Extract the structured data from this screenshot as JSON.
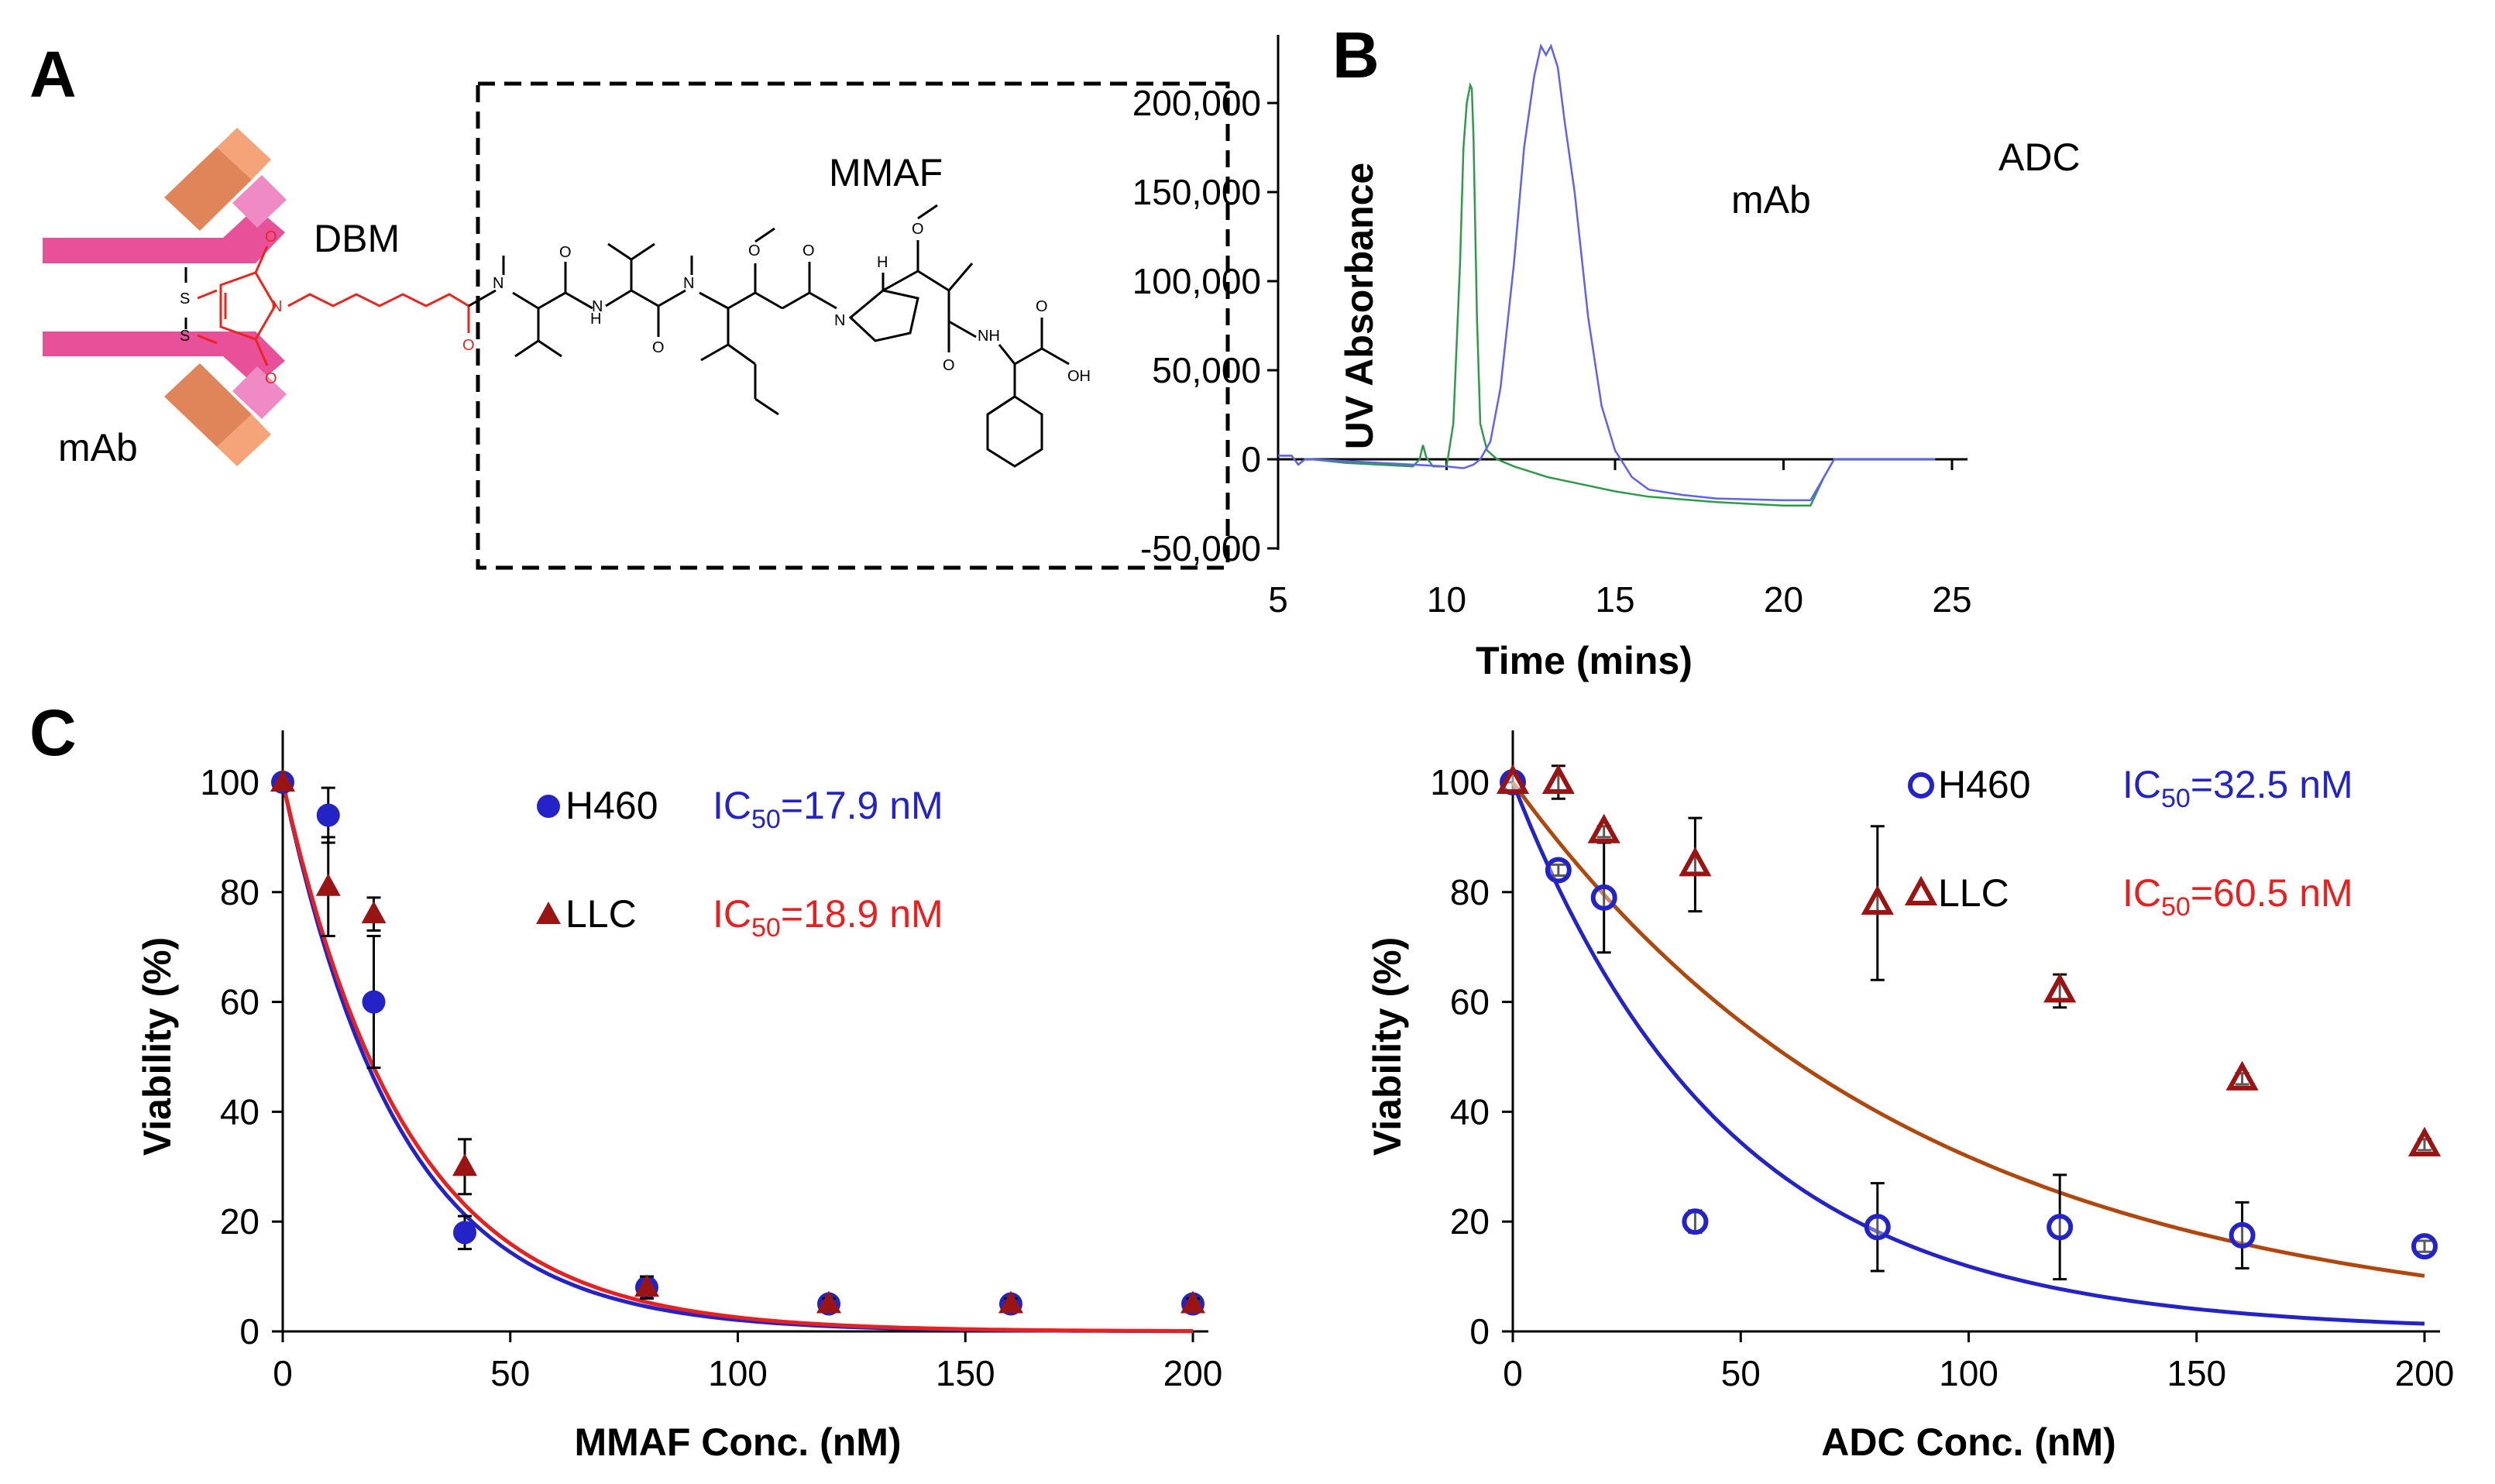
{
  "panels": {
    "a": {
      "letter": "A",
      "mmaf_label": "MMAF",
      "dbm_label": "DBM",
      "mab_label": "mAb",
      "atoms": {
        "N": "N",
        "H": "H",
        "O": "O",
        "S": "S",
        "NH": "NH",
        "OH": "OH"
      }
    },
    "b": {
      "letter": "B"
    },
    "c": {
      "letter": "C"
    }
  },
  "colors": {
    "mab_pink": "#e8509a",
    "mab_light_pink": "#f08ac4",
    "fab_orange": "#f5a47a",
    "fab_dark_orange": "#e0845a",
    "dbm_red": "#e8261d",
    "green": "#2f9a4a",
    "blue_trace": "#5f62ee",
    "blue": "#2323c8",
    "dark_red": "#9a1414",
    "red_curve": "#e82020",
    "brown_curve": "#b0480e",
    "gray_err": "#555555"
  },
  "chart_data": [
    {
      "id": "B",
      "type": "line",
      "title": "",
      "xlabel": "Time (mins)",
      "ylabel": "UV Absorbance",
      "xlim": [
        5,
        25
      ],
      "ylim": [
        -50000,
        240000
      ],
      "xticks": [
        5,
        10,
        15,
        20,
        25
      ],
      "yticks": [
        -50000,
        0,
        50000,
        100000,
        150000,
        200000
      ],
      "ytick_labels": [
        "-50,000",
        "0",
        "50,000",
        "100,000",
        "150,000",
        "200,000"
      ],
      "annotations": [
        "mAb",
        "ADC"
      ],
      "series": [
        {
          "name": "mAb",
          "color": "green",
          "x": [
            5.0,
            5.4,
            5.6,
            5.8,
            6.0,
            7.0,
            8.0,
            9.0,
            9.2,
            9.3,
            9.4,
            9.6,
            10.0,
            10.2,
            10.4,
            10.5,
            10.6,
            10.7,
            10.75,
            10.8,
            10.9,
            11.0,
            11.2,
            11.5,
            12.0,
            13.0,
            14.0,
            15.0,
            16.0,
            18.0,
            20.0,
            20.8,
            21.2,
            21.5,
            22.0,
            24.5
          ],
          "y": [
            2000,
            2000,
            -3000,
            0,
            0,
            -2000,
            -3000,
            -4000,
            0,
            8000,
            1000,
            -4000,
            -4000,
            20000,
            110000,
            175000,
            200000,
            210000,
            208000,
            180000,
            80000,
            20000,
            5000,
            0,
            -4000,
            -10000,
            -14000,
            -18000,
            -21000,
            -24000,
            -26000,
            -26000,
            -10000,
            0,
            0,
            0
          ]
        },
        {
          "name": "ADC",
          "color": "blue",
          "x": [
            5.0,
            5.4,
            5.6,
            5.8,
            6.0,
            7.0,
            8.0,
            9.0,
            10.0,
            10.5,
            10.8,
            11.0,
            11.3,
            11.6,
            12.0,
            12.3,
            12.6,
            12.8,
            12.95,
            13.1,
            13.3,
            13.5,
            13.8,
            14.2,
            14.6,
            15.0,
            15.5,
            16.0,
            17.0,
            18.0,
            20.0,
            20.8,
            21.2,
            21.5,
            22.0,
            24.5
          ],
          "y": [
            2000,
            2000,
            -3000,
            0,
            0,
            -1000,
            -2000,
            -3000,
            -4000,
            -5000,
            -3000,
            0,
            10000,
            40000,
            110000,
            175000,
            215000,
            232000,
            227000,
            232000,
            220000,
            190000,
            150000,
            80000,
            30000,
            5000,
            -10000,
            -17000,
            -20000,
            -22000,
            -23000,
            -23000,
            -10000,
            0,
            0,
            0
          ]
        }
      ]
    },
    {
      "id": "C-left",
      "type": "scatter",
      "title": "",
      "xlabel": "MMAF Conc. (nM)",
      "ylabel": "Viability (%)",
      "xlim": [
        0,
        200
      ],
      "ylim": [
        0,
        100
      ],
      "xticks": [
        0,
        50,
        100,
        150,
        200
      ],
      "yticks": [
        0,
        20,
        40,
        60,
        80,
        100
      ],
      "legend": [
        {
          "label": "H460",
          "ic50_prefix": "IC",
          "ic50_sub": "50",
          "ic50_value": "=17.9 nM"
        },
        {
          "label": "LLC",
          "ic50_prefix": "IC",
          "ic50_sub": "50",
          "ic50_value": "=18.9 nM"
        }
      ],
      "series": [
        {
          "name": "H460",
          "marker": "filled-circle",
          "color": "blue",
          "x": [
            0,
            10,
            20,
            40,
            80,
            120,
            160,
            200
          ],
          "y": [
            100,
            94,
            60,
            18,
            8,
            5,
            5,
            5
          ],
          "err": [
            0,
            5,
            12,
            3,
            2,
            1,
            1,
            1
          ],
          "fit_ic50": 17.9
        },
        {
          "name": "LLC",
          "marker": "filled-triangle",
          "color": "dark_red",
          "x": [
            0,
            10,
            20,
            40,
            80,
            120,
            160,
            200
          ],
          "y": [
            100,
            81,
            76,
            30,
            8,
            5,
            5,
            5
          ],
          "err": [
            0,
            9,
            3,
            5,
            2,
            1,
            1,
            1
          ],
          "fit_ic50": 18.9
        }
      ]
    },
    {
      "id": "C-right",
      "type": "scatter",
      "title": "",
      "xlabel": "ADC Conc. (nM)",
      "ylabel": "Viability (%)",
      "xlim": [
        0,
        200
      ],
      "ylim": [
        0,
        100
      ],
      "xticks": [
        0,
        50,
        100,
        150,
        200
      ],
      "yticks": [
        0,
        20,
        40,
        60,
        80,
        100
      ],
      "legend": [
        {
          "label": "H460",
          "ic50_prefix": "IC",
          "ic50_sub": "50",
          "ic50_value": "=32.5 nM"
        },
        {
          "label": "LLC",
          "ic50_prefix": "IC",
          "ic50_sub": "50",
          "ic50_value": "=60.5 nM"
        }
      ],
      "series": [
        {
          "name": "H460",
          "marker": "open-circle",
          "color": "blue",
          "x": [
            0,
            10,
            20,
            40,
            80,
            120,
            160,
            200
          ],
          "y": [
            100,
            84,
            79,
            20,
            19,
            19,
            17.5,
            15.5
          ],
          "err": [
            0,
            1,
            10,
            2,
            8,
            9.5,
            6,
            1
          ],
          "fit_ic50": 32.5
        },
        {
          "name": "LLC",
          "marker": "open-triangle",
          "color": "dark_red",
          "x": [
            0,
            10,
            20,
            40,
            80,
            120,
            160,
            200
          ],
          "y": [
            100,
            100,
            91,
            85,
            78,
            62,
            46,
            34
          ],
          "err": [
            0,
            3,
            1,
            8.5,
            14,
            3,
            1,
            1
          ],
          "fit_ic50": 60.5
        }
      ]
    }
  ]
}
